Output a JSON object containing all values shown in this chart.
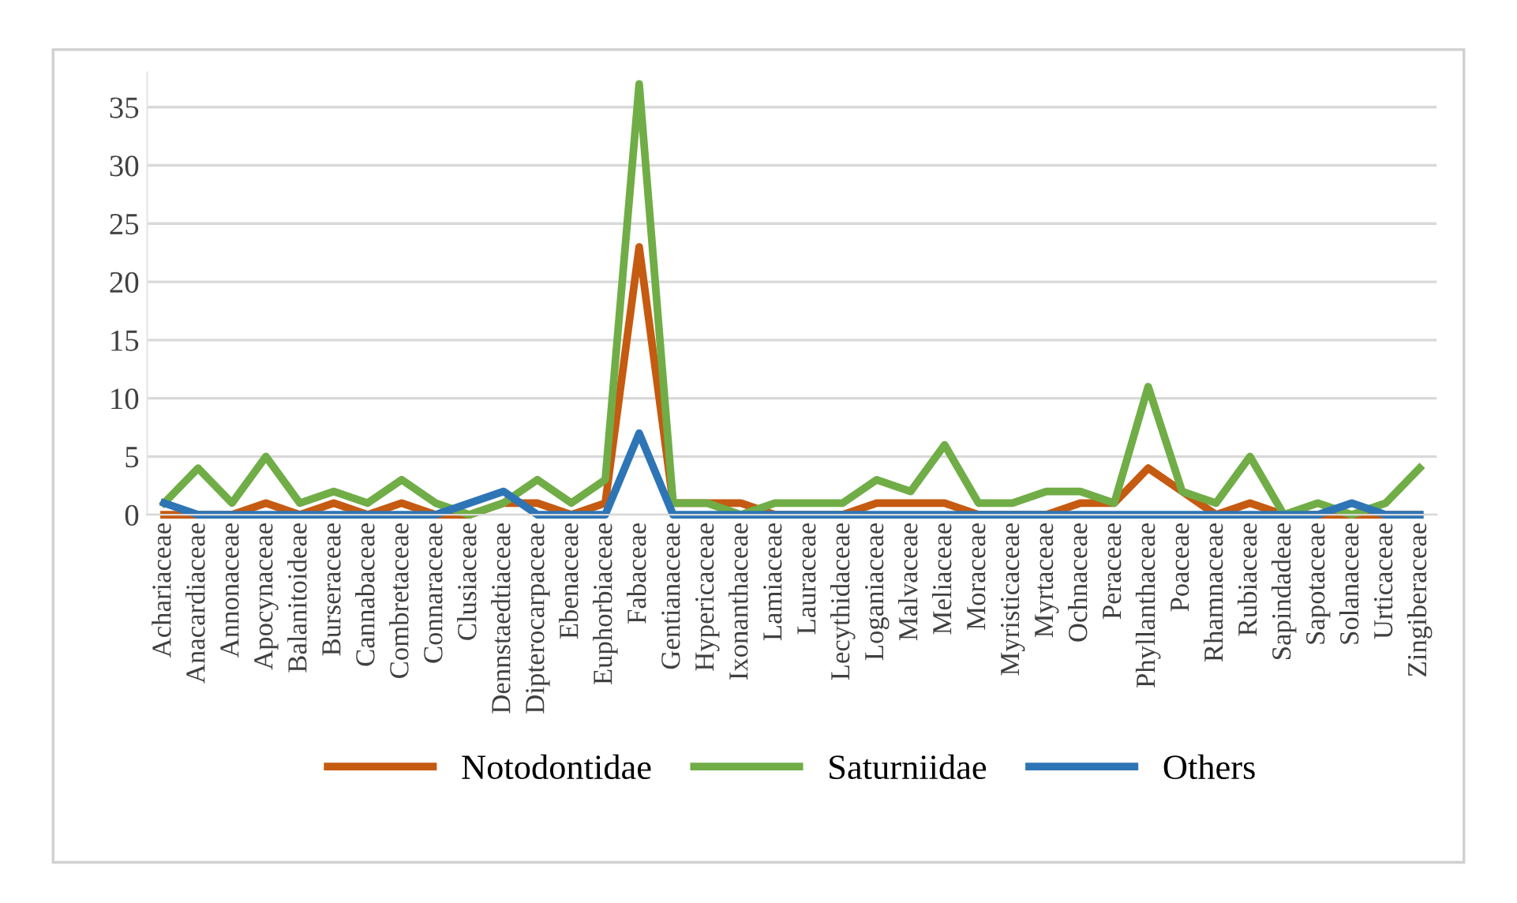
{
  "chart_data": {
    "type": "line",
    "categories": [
      "Achariaceae",
      "Anacardiaceae",
      "Annonaceae",
      "Apocynaceae",
      "Balanitoideae",
      "Burseraceae",
      "Cannabaceae",
      "Combretaceae",
      "Connaraceae",
      "Clusiaceae",
      "Dennstaedtiaceae",
      "Dipterocarpaceae",
      "Ebenaceae",
      "Euphorbiaceae",
      "Fabaceae",
      "Gentianaceae",
      "Hypericaceae",
      "Ixonanthaceae",
      "Lamiaceae",
      "Lauraceae",
      "Lecythidaceae",
      "Loganiaceae",
      "Malvaceae",
      "Meliaceae",
      "Moraceae",
      "Myristicaceae",
      "Myrtaceae",
      "Ochnaceae",
      "Peraceae",
      "Phyllanthaceae",
      "Poaceae",
      "Rhamnaceae",
      "Rubiaceae",
      "Sapindadeae",
      "Sapotaceae",
      "Solanaceae",
      "Urticaceae",
      "Zingiberaceae"
    ],
    "series": [
      {
        "name": "Notodontidae",
        "color": "#c55a11",
        "values": [
          0,
          0,
          0,
          1,
          0,
          1,
          0,
          1,
          0,
          0,
          1,
          1,
          0,
          1,
          23,
          1,
          1,
          1,
          0,
          0,
          0,
          1,
          1,
          1,
          0,
          0,
          0,
          1,
          1,
          4,
          2,
          0,
          1,
          0,
          0,
          0,
          0,
          0
        ]
      },
      {
        "name": "Saturniidae",
        "color": "#70ad47",
        "values": [
          1,
          4,
          1,
          5,
          1,
          2,
          1,
          3,
          1,
          0,
          1,
          3,
          1,
          3,
          37,
          1,
          1,
          0,
          1,
          1,
          1,
          3,
          2,
          6,
          1,
          1,
          2,
          2,
          1,
          11,
          2,
          1,
          5,
          0,
          1,
          0,
          1,
          4
        ]
      },
      {
        "name": "Others",
        "color": "#2e75b6",
        "values": [
          1,
          0,
          0,
          0,
          0,
          0,
          0,
          0,
          0,
          1,
          2,
          0,
          0,
          0,
          7,
          0,
          0,
          0,
          0,
          0,
          0,
          0,
          0,
          0,
          0,
          0,
          0,
          0,
          0,
          0,
          0,
          0,
          0,
          0,
          0,
          1,
          0,
          0
        ]
      }
    ],
    "ylim": [
      0,
      38
    ],
    "yticks": [
      0,
      5,
      10,
      15,
      20,
      25,
      30,
      35
    ],
    "grid": "y",
    "legend": "bottom",
    "marker": "none",
    "line_style": "solid"
  }
}
